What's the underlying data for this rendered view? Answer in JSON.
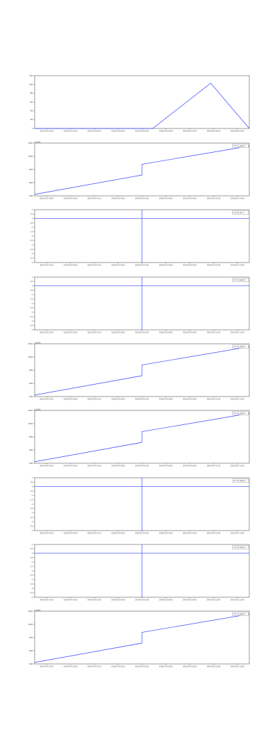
{
  "chart_data": [
    {
      "type": "line",
      "panel": 1,
      "legend": false,
      "grid": false,
      "ylim": [
        0,
        1200
      ],
      "ytick_labels": [
        "1200",
        "1000",
        "800",
        "600",
        "400",
        "200",
        "0"
      ],
      "xtick_labels": [
        "2016-05-20 00:00",
        "2016-05-22 00:00",
        "2016-05-24 00:00",
        "2016-05-26 00:00",
        "2016-05-28 00:00",
        "2016-05-30 00:00",
        "2016-06-01 00:00",
        "2016-06-03 00:00",
        "2016-06-05 00:00"
      ],
      "series": [
        {
          "color": "#3344ff",
          "x": [
            0,
            0.55,
            0.82,
            1.0
          ],
          "y": [
            0,
            0,
            1030,
            0
          ]
        }
      ],
      "axes_color": "#555555"
    },
    {
      "type": "line",
      "panel": 2,
      "legend_position": "top-right",
      "grid": false,
      "offset_text": "1e1001",
      "ylim": [
        2600,
        16800
      ],
      "ytick_labels": [
        "15000",
        "12000",
        "9000",
        "6000",
        "3000"
      ],
      "xtick_labels": [
        "2016-05-24 15:00",
        "2016-05-24 18:00",
        "2016-05-24 21:00",
        "2016-05-25 00:00",
        "2016-05-25 03:00",
        "2016-05-25 06:00",
        "2016-05-25 09:00",
        "2016-05-25 12:00",
        "2016-05-25 15:00"
      ],
      "series": [
        {
          "name": "10_right_rt",
          "color": "#3344ff",
          "x": [
            0,
            0.5,
            0.5,
            1.0
          ],
          "y": [
            3000,
            8200,
            11100,
            16000
          ]
        }
      ]
    },
    {
      "type": "line",
      "panel": 3,
      "legend_position": "top-right",
      "grid": false,
      "ylim": [
        -5,
        1
      ],
      "ytick_labels": [
        "1",
        "0.5",
        "0",
        "-0.5",
        "-1",
        "-1.5",
        "-2",
        "-2.5",
        "-3",
        "-3.5",
        "-4",
        "-4.5",
        "-5"
      ],
      "xtick_labels": [
        "2016-05-24 15:00",
        "2016-05-24 18:00",
        "2016-05-24 21:00",
        "2016-05-25 00:00",
        "2016-05-25 03:00",
        "2016-05-25 06:00",
        "2016-05-25 09:00",
        "2016-05-25 12:00",
        "2016-05-25 15:00"
      ],
      "series": [
        {
          "name": "10_up_rt",
          "color": "#3344ff",
          "x": [
            0,
            0.5,
            0.5,
            0.5,
            0.5,
            1.0
          ],
          "y": [
            0,
            0,
            1,
            -5,
            0,
            0
          ]
        }
      ]
    },
    {
      "type": "line",
      "panel": 4,
      "legend_position": "top-right",
      "grid": false,
      "ylim": [
        -5,
        1
      ],
      "ytick_labels": [
        "1",
        "0.5",
        "0",
        "-0.5",
        "-1",
        "-1.5",
        "-2",
        "-2.5",
        "-3",
        "-3.5",
        "-4",
        "-4.5",
        "-5"
      ],
      "xtick_labels": [
        "2016-05-24 15:00",
        "2016-05-24 18:00",
        "2016-05-24 21:00",
        "2016-05-25 00:00",
        "2016-05-25 03:00",
        "2016-05-25 06:00",
        "2016-05-25 09:00",
        "2016-05-25 12:00",
        "2016-05-25 15:00"
      ],
      "series": [
        {
          "name": "10_right_rt",
          "color": "#3344ff",
          "x": [
            0,
            0.5,
            0.5,
            0.5,
            0.5,
            1.0
          ],
          "y": [
            0,
            0,
            1,
            -5,
            0,
            0
          ]
        }
      ]
    },
    {
      "type": "line",
      "panel": 5,
      "legend_position": "top-right",
      "grid": false,
      "offset_text": "1e1001",
      "ylim": [
        2600,
        16800
      ],
      "ytick_labels": [
        "15000",
        "12000",
        "9000",
        "6000",
        "3000"
      ],
      "xtick_labels": [
        "2016-05-24 15:00",
        "2016-05-24 18:00",
        "2016-05-24 21:00",
        "2016-05-25 00:00",
        "2016-05-25 03:00",
        "2016-05-25 06:00",
        "2016-05-25 09:00",
        "2016-05-25 12:00",
        "2016-05-25 15:00"
      ],
      "series": [
        {
          "name": "10_right_rt",
          "color": "#3344ff",
          "x": [
            0,
            0.5,
            0.5,
            1.0
          ],
          "y": [
            3000,
            8200,
            11100,
            16000
          ]
        }
      ]
    },
    {
      "type": "line",
      "panel": 6,
      "legend_position": "top-right",
      "grid": false,
      "offset_text": "1e1001",
      "ylim": [
        2600,
        16800
      ],
      "ytick_labels": [
        "15000",
        "12000",
        "9000",
        "6000",
        "3000"
      ],
      "xtick_labels": [
        "2016-05-24 15:00",
        "2016-05-24 18:00",
        "2016-05-24 21:00",
        "2016-05-25 00:00",
        "2016-05-25 03:00",
        "2016-05-25 06:00",
        "2016-05-25 09:00",
        "2016-05-25 12:00",
        "2016-05-25 15:00"
      ],
      "series": [
        {
          "name": "10_right_rt",
          "color": "#3344ff",
          "x": [
            0,
            0.5,
            0.5,
            1.0
          ],
          "y": [
            3000,
            8200,
            11100,
            16000
          ]
        }
      ]
    },
    {
      "type": "line",
      "panel": 7,
      "legend_position": "top-right",
      "grid": false,
      "ylim": [
        -5,
        1
      ],
      "ytick_labels": [
        "1",
        "0.5",
        "0",
        "-0.5",
        "-1",
        "-1.5",
        "-2",
        "-2.5",
        "-3",
        "-3.5",
        "-4",
        "-4.5",
        "-5"
      ],
      "xtick_labels": [
        "2016-05-24 15:00",
        "2016-05-24 18:00",
        "2016-05-24 21:00",
        "2016-05-25 00:00",
        "2016-05-25 03:00",
        "2016-05-25 06:00",
        "2016-05-25 09:00",
        "2016-05-25 12:00",
        "2016-05-25 15:00"
      ],
      "series": [
        {
          "name": "10_right_rt",
          "color": "#3344ff",
          "x": [
            0,
            0.5,
            0.5,
            0.5,
            0.5,
            1.0
          ],
          "y": [
            0,
            0,
            1,
            -5,
            0,
            0
          ]
        }
      ]
    },
    {
      "type": "line",
      "panel": 8,
      "legend_position": "top-right",
      "grid": false,
      "ylim": [
        -5,
        1
      ],
      "ytick_labels": [
        "1",
        "0.5",
        "0",
        "-0.5",
        "-1",
        "-1.5",
        "-2",
        "-2.5",
        "-3",
        "-3.5",
        "-4",
        "-4.5",
        "-5"
      ],
      "xtick_labels": [
        "2016-05-24 15:00",
        "2016-05-24 18:00",
        "2016-05-24 21:00",
        "2016-05-25 00:00",
        "2016-05-25 03:00",
        "2016-05-25 06:00",
        "2016-05-25 09:00",
        "2016-05-25 12:00",
        "2016-05-25 15:00"
      ],
      "series": [
        {
          "name": "10_right_rt",
          "color": "#3344ff",
          "x": [
            0,
            0.5,
            0.5,
            0.5,
            0.5,
            1.0
          ],
          "y": [
            0,
            0,
            1,
            -5,
            0,
            0
          ]
        }
      ]
    },
    {
      "type": "line",
      "panel": 9,
      "legend_position": "top-right",
      "grid": false,
      "offset_text": "1e1001",
      "ylim": [
        2600,
        16800
      ],
      "ytick_labels": [
        "15000",
        "12000",
        "9000",
        "6000",
        "3000"
      ],
      "xtick_labels": [
        "2016-05-24 15:00",
        "2016-05-24 18:00",
        "2016-05-24 21:00",
        "2016-05-25 00:00",
        "2016-05-25 03:00",
        "2016-05-25 06:00",
        "2016-05-25 09:00",
        "2016-05-25 12:00",
        "2016-05-25 15:00"
      ],
      "series": [
        {
          "name": "10_right_rt",
          "color": "#3344ff",
          "x": [
            0,
            0.5,
            0.5,
            1.0
          ],
          "y": [
            3000,
            8200,
            11100,
            16000
          ]
        }
      ]
    }
  ]
}
